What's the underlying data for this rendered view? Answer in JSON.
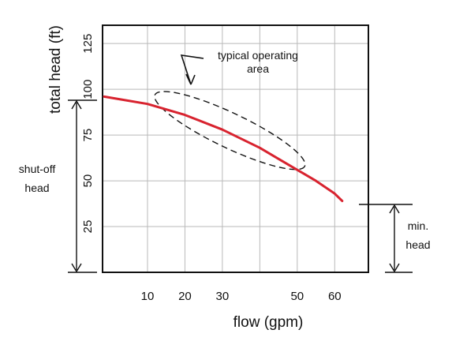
{
  "chart_data": {
    "type": "line",
    "xlabel": "flow (gpm)",
    "ylabel": "total head (ft)",
    "x_ticks": [
      10,
      20,
      30,
      50,
      60
    ],
    "y_ticks": [
      25,
      50,
      75,
      100,
      125
    ],
    "xlim": [
      -2,
      69
    ],
    "ylim": [
      0,
      135
    ],
    "grid": true,
    "series": [
      {
        "color": "#d8232f",
        "x": [
          0,
          10,
          20,
          30,
          40,
          45,
          50,
          55,
          60,
          62
        ],
        "y": [
          96,
          92,
          86,
          78,
          68,
          62,
          56,
          50,
          43,
          39
        ]
      }
    ],
    "operating_area": {
      "flow_range": [
        12,
        52
      ],
      "head_range": [
        58,
        97
      ]
    },
    "annotations": {
      "operating_area_line1": "typical operating",
      "operating_area_line2": "area",
      "shutoff_line1": "shut-off",
      "shutoff_line2": "head",
      "minhead_line1": "min.",
      "minhead_line2": "head"
    }
  }
}
